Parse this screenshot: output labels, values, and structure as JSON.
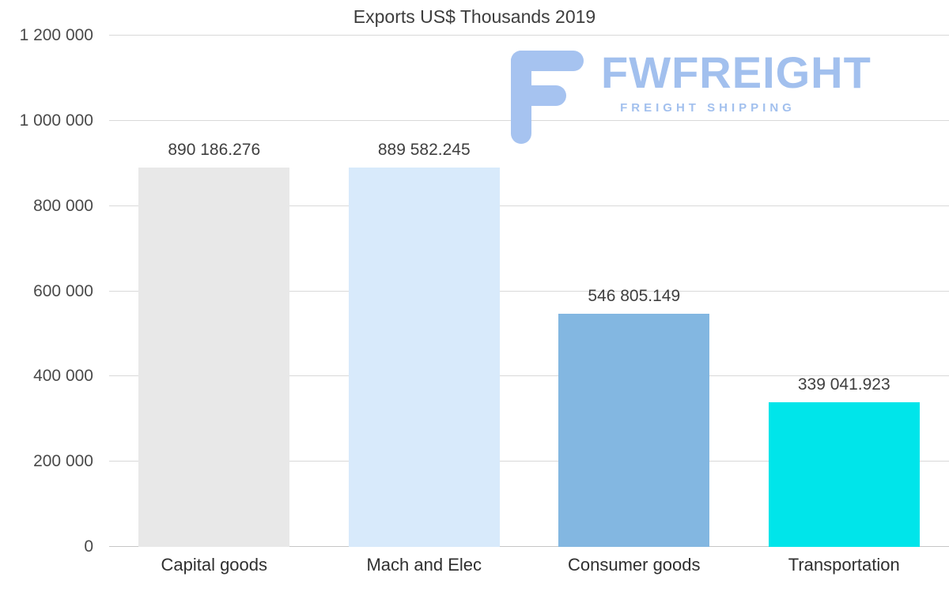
{
  "watermark": {
    "brand": "FWFREIGHT",
    "tagline": "FREIGHT SHIPPING",
    "color": "#a2c0ee"
  },
  "colors": {
    "background": "#ffffff",
    "gridline": "#d9d9d9",
    "axis_line": "#c6c6c6",
    "title_text": "#3d3d3d",
    "tick_text": "#4a4a4a",
    "value_text": "#3f3f3f"
  },
  "chart_data": {
    "type": "bar",
    "title": "Exports US$ Thousands 2019",
    "categories": [
      "Capital goods",
      "Mach and Elec",
      "Consumer goods",
      "Transportation"
    ],
    "values": [
      890186.276,
      889582.245,
      546805.149,
      339041.923
    ],
    "value_labels": [
      "890 186.276",
      "889 582.245",
      "546 805.149",
      "339 041.923"
    ],
    "bar_colors": [
      "#e8e8e8",
      "#d8eafb",
      "#83b7e1",
      "#00e5ea"
    ],
    "xlabel": "",
    "ylabel": "",
    "ylim": [
      0,
      1200000
    ],
    "yticks": [
      0,
      200000,
      400000,
      600000,
      800000,
      1000000,
      1200000
    ],
    "ytick_labels": [
      "0",
      "200 000",
      "400 000",
      "600 000",
      "800 000",
      "1 000 000",
      "1 200 000"
    ],
    "grid": true,
    "legend_position": "none"
  }
}
